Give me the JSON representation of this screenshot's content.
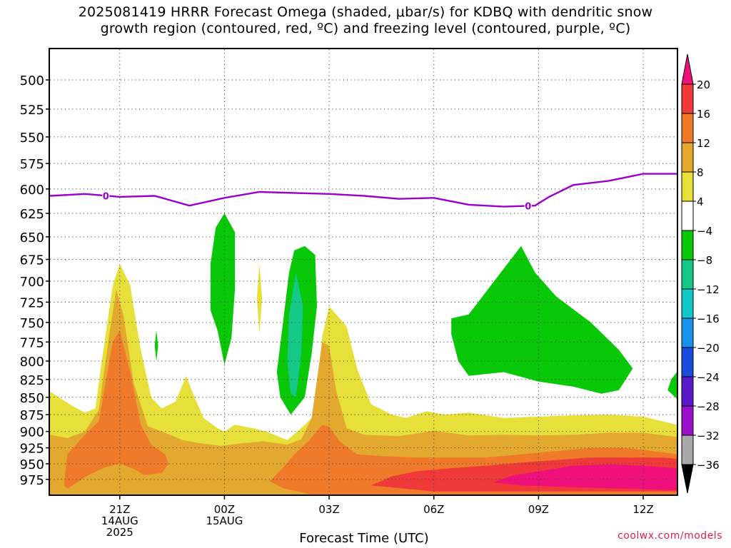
{
  "chart_data": {
    "type": "contour",
    "title_line1": "2025081419 HRRR Forecast Omega (shaded, μbar/s) for KDBQ with dendritic snow",
    "title_line2": "growth region (contoured, red, ºC) and freezing level (contoured, purple, ºC)",
    "xlabel": "Forecast Time (UTC)",
    "credit": "coolwx.com/models",
    "x_ticks": [
      {
        "hour": 21,
        "lines": [
          "21Z",
          "14AUG",
          "2025"
        ]
      },
      {
        "hour": 24,
        "lines": [
          "00Z",
          "15AUG"
        ]
      },
      {
        "hour": 27,
        "lines": [
          "03Z"
        ]
      },
      {
        "hour": 30,
        "lines": [
          "06Z"
        ]
      },
      {
        "hour": 33,
        "lines": [
          "09Z"
        ]
      },
      {
        "hour": 36,
        "lines": [
          "12Z"
        ]
      }
    ],
    "xlim": [
      19.0,
      36.96
    ],
    "y_ticks": [
      500,
      525,
      550,
      575,
      600,
      625,
      650,
      675,
      700,
      725,
      750,
      775,
      800,
      825,
      850,
      875,
      900,
      925,
      950,
      975
    ],
    "ylim_hpa": [
      1000,
      475
    ],
    "y_scale": "log",
    "colorbar": {
      "labels": [
        "20",
        "16",
        "12",
        "8",
        "4",
        "−4",
        "−8",
        "−12",
        "−16",
        "−20",
        "−24",
        "−28",
        "−32",
        "−36"
      ],
      "levels": [
        20,
        16,
        12,
        8,
        4,
        -4,
        -8,
        -12,
        -16,
        -20,
        -24,
        -28,
        -32,
        -36
      ],
      "colors": [
        "#f0107c",
        "#f03a3a",
        "#ee7a2a",
        "#e3a82e",
        "#e8e03a",
        "#ffffff",
        "#08c808",
        "#15c888",
        "#10c8c8",
        "#1a92ec",
        "#1a4cdc",
        "#5a18c8",
        "#9a10c8",
        "#a8a8a8",
        "#000000"
      ]
    },
    "freezing_level": {
      "label": "0",
      "color": "#9a00c8",
      "points": [
        [
          19.0,
          607
        ],
        [
          20.0,
          605
        ],
        [
          21.0,
          608
        ],
        [
          22.0,
          607
        ],
        [
          23.0,
          617
        ],
        [
          24.0,
          609
        ],
        [
          25.0,
          603
        ],
        [
          26.0,
          604
        ],
        [
          27.0,
          605
        ],
        [
          28.0,
          607
        ],
        [
          29.0,
          610
        ],
        [
          30.0,
          609
        ],
        [
          31.0,
          616
        ],
        [
          32.0,
          618
        ],
        [
          32.9,
          617
        ],
        [
          33.3,
          608
        ],
        [
          34.0,
          596
        ],
        [
          35.0,
          592
        ],
        [
          36.0,
          585
        ],
        [
          36.96,
          585
        ]
      ]
    },
    "shaded_regions": [
      {
        "name": "omega-pos-4",
        "color": "#e8e03a",
        "points": [
          [
            19.0,
            842
          ],
          [
            19.6,
            861
          ],
          [
            20.0,
            872
          ],
          [
            20.3,
            866
          ],
          [
            20.5,
            795
          ],
          [
            20.8,
            705
          ],
          [
            21.0,
            680
          ],
          [
            21.3,
            705
          ],
          [
            21.6,
            785
          ],
          [
            21.9,
            850
          ],
          [
            22.2,
            866
          ],
          [
            22.6,
            856
          ],
          [
            22.9,
            820
          ],
          [
            23.1,
            845
          ],
          [
            23.4,
            880
          ],
          [
            23.8,
            895
          ],
          [
            24.0,
            900
          ],
          [
            24.3,
            890
          ],
          [
            24.8,
            895
          ],
          [
            25.2,
            900
          ],
          [
            25.8,
            913
          ],
          [
            26.2,
            895
          ],
          [
            26.6,
            875
          ],
          [
            26.8,
            768
          ],
          [
            27.0,
            730
          ],
          [
            27.5,
            755
          ],
          [
            27.8,
            810
          ],
          [
            28.2,
            860
          ],
          [
            28.8,
            875
          ],
          [
            29.2,
            880
          ],
          [
            29.8,
            870
          ],
          [
            30.3,
            875
          ],
          [
            31.0,
            872
          ],
          [
            32.0,
            880
          ],
          [
            33.0,
            878
          ],
          [
            34.0,
            876
          ],
          [
            35.0,
            875
          ],
          [
            36.0,
            878
          ],
          [
            36.96,
            890
          ],
          [
            36.96,
            1000
          ],
          [
            19.0,
            1000
          ]
        ]
      },
      {
        "name": "omega-pos-8",
        "color": "#e3a82e",
        "points": [
          [
            19.0,
            905
          ],
          [
            19.5,
            910
          ],
          [
            20.0,
            900
          ],
          [
            20.4,
            868
          ],
          [
            20.7,
            765
          ],
          [
            20.9,
            710
          ],
          [
            21.1,
            740
          ],
          [
            21.4,
            830
          ],
          [
            21.8,
            892
          ],
          [
            22.3,
            902
          ],
          [
            22.8,
            913
          ],
          [
            23.3,
            918
          ],
          [
            23.9,
            922
          ],
          [
            24.5,
            918
          ],
          [
            25.1,
            915
          ],
          [
            25.8,
            920
          ],
          [
            26.2,
            912
          ],
          [
            26.5,
            880
          ],
          [
            26.8,
            775
          ],
          [
            27.0,
            780
          ],
          [
            27.2,
            840
          ],
          [
            27.5,
            895
          ],
          [
            28.0,
            905
          ],
          [
            29.0,
            907
          ],
          [
            30.0,
            899
          ],
          [
            31.0,
            906
          ],
          [
            32.0,
            905
          ],
          [
            33.0,
            906
          ],
          [
            34.0,
            905
          ],
          [
            35.0,
            902
          ],
          [
            36.0,
            902
          ],
          [
            36.96,
            908
          ],
          [
            36.96,
            1000
          ],
          [
            19.0,
            1000
          ]
        ]
      },
      {
        "name": "omega-pos-12",
        "color": "#ee7a2a",
        "points": [
          [
            19.4,
            985
          ],
          [
            19.5,
            935
          ],
          [
            20.0,
            905
          ],
          [
            20.4,
            885
          ],
          [
            20.8,
            775
          ],
          [
            21.0,
            760
          ],
          [
            21.3,
            815
          ],
          [
            21.6,
            890
          ],
          [
            21.9,
            920
          ],
          [
            22.3,
            935
          ],
          [
            22.4,
            950
          ],
          [
            22.2,
            965
          ],
          [
            21.7,
            968
          ],
          [
            21.4,
            958
          ],
          [
            21.0,
            950
          ],
          [
            20.6,
            955
          ],
          [
            20.1,
            968
          ],
          [
            19.7,
            983
          ],
          [
            19.5,
            990
          ]
        ]
      },
      {
        "name": "omega-pos-12b",
        "color": "#ee7a2a",
        "points": [
          [
            25.3,
            978
          ],
          [
            25.7,
            955
          ],
          [
            26.0,
            935
          ],
          [
            26.4,
            915
          ],
          [
            26.8,
            890
          ],
          [
            27.0,
            893
          ],
          [
            27.3,
            915
          ],
          [
            27.8,
            935
          ],
          [
            28.5,
            938
          ],
          [
            29.5,
            940
          ],
          [
            30.5,
            940
          ],
          [
            31.5,
            940
          ],
          [
            32.5,
            935
          ],
          [
            33.5,
            930
          ],
          [
            34.5,
            925
          ],
          [
            35.5,
            925
          ],
          [
            36.3,
            930
          ],
          [
            36.96,
            935
          ],
          [
            36.96,
            1000
          ],
          [
            26.5,
            1000
          ],
          [
            25.7,
            990
          ]
        ]
      },
      {
        "name": "omega-pos-16",
        "color": "#f03a3a",
        "points": [
          [
            28.2,
            985
          ],
          [
            28.8,
            970
          ],
          [
            29.5,
            962
          ],
          [
            30.5,
            957
          ],
          [
            31.5,
            953
          ],
          [
            32.5,
            948
          ],
          [
            33.5,
            944
          ],
          [
            34.5,
            940
          ],
          [
            35.5,
            940
          ],
          [
            36.5,
            940
          ],
          [
            36.96,
            942
          ],
          [
            36.96,
            995
          ],
          [
            30.0,
            995
          ]
        ]
      },
      {
        "name": "omega-pos-20",
        "color": "#f0107c",
        "points": [
          [
            31.7,
            980
          ],
          [
            32.3,
            968
          ],
          [
            33.0,
            962
          ],
          [
            34.0,
            953
          ],
          [
            35.0,
            951
          ],
          [
            36.0,
            953
          ],
          [
            36.96,
            957
          ],
          [
            36.96,
            993
          ],
          [
            34.0,
            988
          ],
          [
            32.5,
            985
          ]
        ]
      },
      {
        "name": "omega-neg-4-a",
        "color": "#08c808",
        "points": [
          [
            24.0,
            625
          ],
          [
            24.3,
            645
          ],
          [
            24.3,
            710
          ],
          [
            24.2,
            770
          ],
          [
            24.0,
            805
          ],
          [
            23.8,
            760
          ],
          [
            23.6,
            735
          ],
          [
            23.6,
            680
          ],
          [
            23.75,
            640
          ]
        ]
      },
      {
        "name": "omega-neg-4-b",
        "color": "#08c808",
        "points": [
          [
            26.3,
            660
          ],
          [
            26.6,
            670
          ],
          [
            26.65,
            730
          ],
          [
            26.5,
            790
          ],
          [
            26.3,
            850
          ],
          [
            25.9,
            875
          ],
          [
            25.6,
            850
          ],
          [
            25.5,
            815
          ],
          [
            25.65,
            760
          ],
          [
            25.85,
            690
          ],
          [
            26.0,
            665
          ]
        ]
      },
      {
        "name": "omega-neg-4-c",
        "color": "#08c808",
        "points": [
          [
            32.5,
            660
          ],
          [
            32.9,
            690
          ],
          [
            33.5,
            718
          ],
          [
            34.5,
            750
          ],
          [
            35.3,
            785
          ],
          [
            35.7,
            810
          ],
          [
            35.3,
            840
          ],
          [
            34.8,
            845
          ],
          [
            34.0,
            835
          ],
          [
            33.0,
            828
          ],
          [
            32.0,
            815
          ],
          [
            31.0,
            820
          ],
          [
            30.7,
            800
          ],
          [
            30.5,
            765
          ],
          [
            30.5,
            745
          ],
          [
            31.0,
            740
          ]
        ]
      },
      {
        "name": "omega-neg-4-d",
        "color": "#08c808",
        "points": [
          [
            36.96,
            815
          ],
          [
            36.8,
            825
          ],
          [
            36.7,
            840
          ],
          [
            36.96,
            852
          ]
        ]
      },
      {
        "name": "omega-neg-4-e",
        "color": "#08c808",
        "points": [
          [
            22.05,
            760
          ],
          [
            22.1,
            780
          ],
          [
            22.05,
            800
          ],
          [
            22.0,
            780
          ]
        ]
      },
      {
        "name": "omega-neg-8",
        "color": "#15c888",
        "points": [
          [
            26.05,
            690
          ],
          [
            26.25,
            730
          ],
          [
            26.2,
            790
          ],
          [
            26.05,
            850
          ],
          [
            25.9,
            845
          ],
          [
            25.8,
            800
          ],
          [
            25.85,
            740
          ]
        ]
      },
      {
        "name": "omega-pos-4-sliver",
        "color": "#e8e03a",
        "points": [
          [
            25.0,
            680
          ],
          [
            25.08,
            720
          ],
          [
            25.0,
            765
          ],
          [
            24.93,
            720
          ]
        ]
      }
    ],
    "bottom_band": {
      "color": "#c0702a",
      "from_hpa": 988,
      "to_hpa": 1000
    }
  }
}
